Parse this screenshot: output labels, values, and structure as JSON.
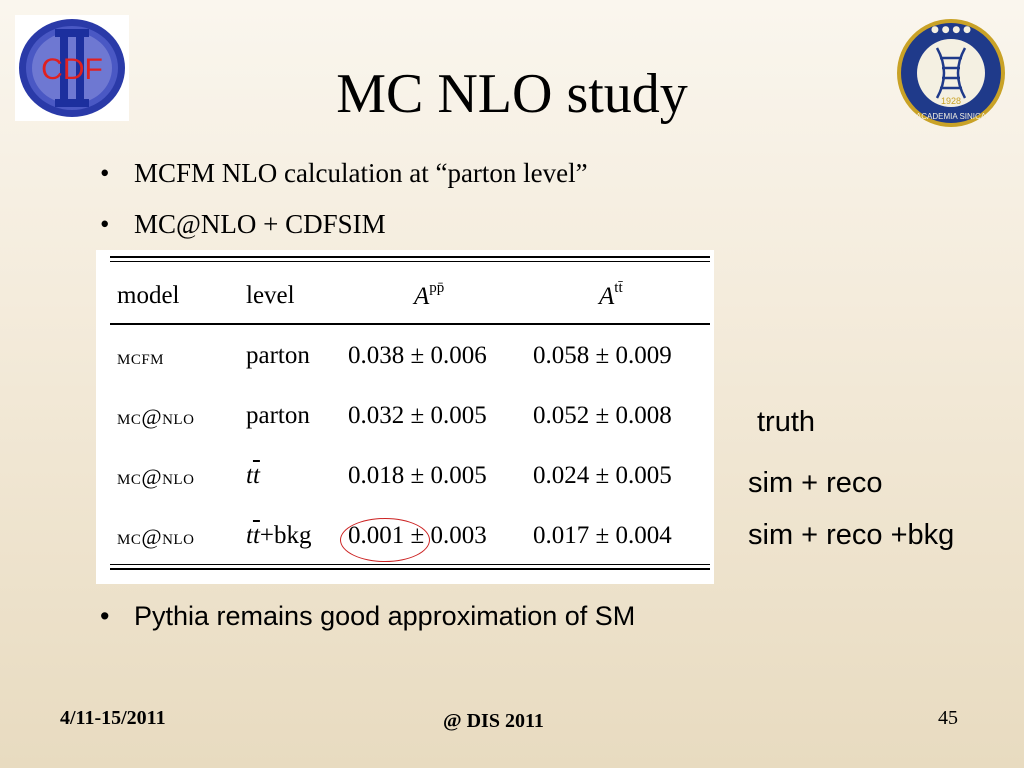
{
  "title": "MC NLO study",
  "logos": {
    "left_text": "CDF",
    "right_text": "ACADEMIA SINICA",
    "right_year": "1928"
  },
  "bullets": [
    {
      "marker": "•",
      "text": "MCFM  NLO calculation at “parton level”"
    },
    {
      "marker": "•",
      "text": "MC@NLO + CDFSIM"
    },
    {
      "marker": "•",
      "text": "Pythia remains good approximation of SM"
    }
  ],
  "table": {
    "headers": {
      "model": "model",
      "level": "level",
      "col1_base": "A",
      "col1_sup": "pp̄",
      "col2_base": "A",
      "col2_sup": "tt̄"
    },
    "rows": [
      {
        "model": "mcfm",
        "level": "parton",
        "a_ppbar": "0.038 ± 0.006",
        "a_ttbar": "0.058 ± 0.009"
      },
      {
        "model": "mc@nlo",
        "level": "parton",
        "a_ppbar": "0.032 ± 0.005",
        "a_ttbar": "0.052 ± 0.008"
      },
      {
        "model": "mc@nlo",
        "level_t1": "t",
        "level_t2": "t",
        "level_suffix": "",
        "a_ppbar": "0.018 ± 0.005",
        "a_ttbar": "0.024 ± 0.005"
      },
      {
        "model": "mc@nlo",
        "level_t1": "t",
        "level_t2": "t",
        "level_suffix": "+bkg",
        "a_ppbar": "0.001 ± 0.003",
        "a_ttbar": "0.017 ± 0.004"
      }
    ]
  },
  "annotations": {
    "truth": "truth",
    "sim_reco": "sim + reco",
    "sim_reco_bkg": "sim + reco +bkg"
  },
  "footer": {
    "date": "4/11-15/2011",
    "venue": "@ DIS 2011",
    "page": "45"
  },
  "colors": {
    "highlight_circle": "#cc2222",
    "cdf_ring": "#1c2f9e",
    "cdf_text": "#dd2222",
    "sinica_blue": "#1f3a8a",
    "sinica_gold": "#c9a227"
  }
}
